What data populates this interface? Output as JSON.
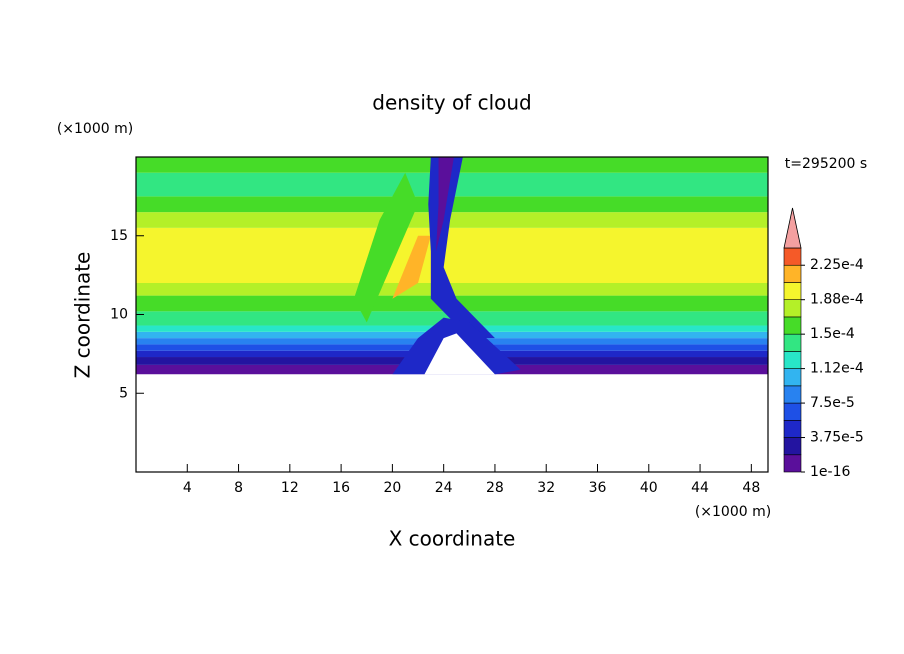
{
  "chart_data": {
    "type": "contour",
    "title": "density of cloud",
    "xlabel": "X coordinate",
    "ylabel": "Z coordinate",
    "xunit": "(×1000 m)",
    "yunit": "(×1000 m)",
    "time_label": "t=295200 s",
    "xlim": [
      0,
      49.3
    ],
    "xticks": [
      4,
      8,
      12,
      16,
      20,
      24,
      28,
      32,
      36,
      40,
      44,
      48
    ],
    "ylim": [
      0,
      20
    ],
    "yticks": [
      5,
      10,
      15
    ],
    "colorbar": {
      "lim": [
        1e-16,
        0.00024375
      ],
      "ticks": [
        {
          "value": 1e-16,
          "label": "1e-16"
        },
        {
          "value": 3.75e-05,
          "label": "3.75e-5"
        },
        {
          "value": 7.5e-05,
          "label": "7.5e-5"
        },
        {
          "value": 0.0001125,
          "label": "1.12e-4"
        },
        {
          "value": 0.00015,
          "label": "1.5e-4"
        },
        {
          "value": 0.0001875,
          "label": "1.88e-4"
        },
        {
          "value": 0.000225,
          "label": "2.25e-4"
        }
      ],
      "colors": [
        "#5a0f9b",
        "#2314a0",
        "#1e28c8",
        "#1e50e6",
        "#2882f0",
        "#32b4f0",
        "#28e6c8",
        "#32e682",
        "#46dc28",
        "#b4f028",
        "#f5f52d",
        "#ffb428",
        "#f55a28"
      ],
      "extend_color": "#f4a0a0"
    }
  }
}
